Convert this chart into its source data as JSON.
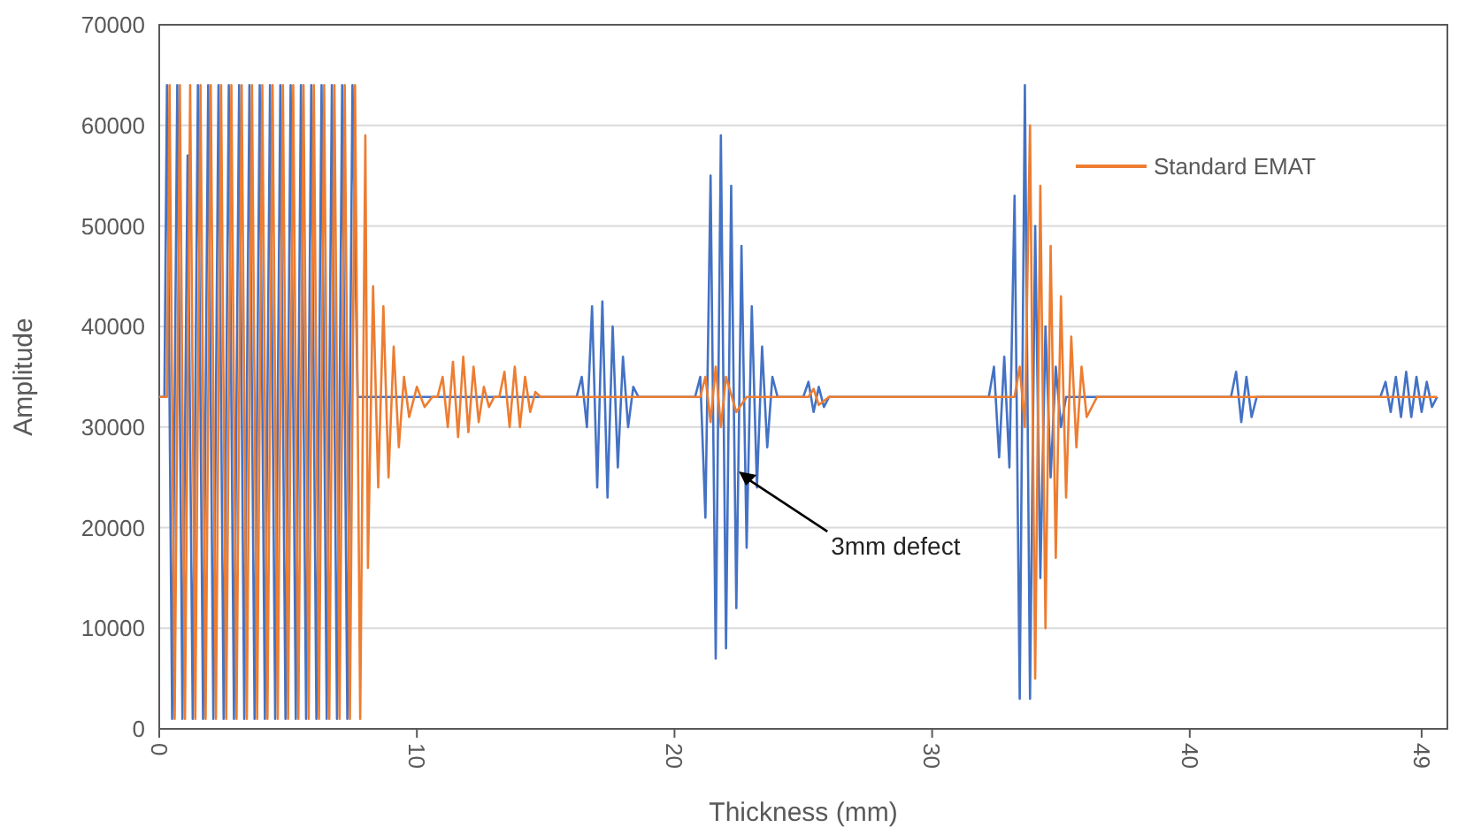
{
  "chart_data": {
    "type": "line",
    "xlabel": "Thickness (mm)",
    "ylabel": "Amplitude",
    "xlim": [
      0,
      50
    ],
    "xticks": [
      0,
      10,
      20,
      30,
      40,
      49
    ],
    "ylim": [
      0,
      70000
    ],
    "yticks": [
      0,
      10000,
      20000,
      30000,
      40000,
      50000,
      60000,
      70000
    ],
    "grid": "y",
    "legend": "top right",
    "line_style": "solid",
    "marker": "none",
    "annotations": [
      {
        "text": "3mm defect",
        "x": 22.5,
        "y": 25600
      }
    ],
    "series": [
      {
        "color": "#4472c4",
        "x": [
          0,
          0.2,
          0.3,
          0.5,
          0.7,
          0.9,
          1.1,
          1.3,
          1.5,
          1.7,
          1.9,
          2.1,
          2.3,
          2.5,
          2.7,
          2.9,
          3.1,
          3.3,
          3.5,
          3.7,
          3.9,
          4.1,
          4.3,
          4.5,
          4.7,
          4.9,
          5.1,
          5.3,
          5.5,
          5.7,
          5.9,
          6.1,
          6.3,
          6.5,
          6.7,
          6.9,
          7.1,
          7.3,
          7.5,
          7.7,
          8.0,
          16.2,
          16.4,
          16.6,
          16.8,
          17.0,
          17.2,
          17.4,
          17.6,
          17.8,
          18.0,
          18.2,
          18.4,
          18.6,
          20.8,
          21.0,
          21.2,
          21.4,
          21.6,
          21.8,
          22.0,
          22.2,
          22.4,
          22.6,
          22.8,
          23.0,
          23.2,
          23.4,
          23.6,
          23.8,
          24.0,
          25.0,
          25.2,
          25.4,
          25.6,
          25.8,
          26.0,
          32.2,
          32.4,
          32.6,
          32.8,
          33.0,
          33.2,
          33.4,
          33.6,
          33.8,
          34.0,
          34.2,
          34.4,
          34.6,
          34.8,
          35.0,
          35.2,
          41.6,
          41.8,
          42.0,
          42.2,
          42.4,
          42.6,
          47.4,
          47.6,
          47.8,
          48.0,
          48.2,
          48.4,
          48.6,
          48.8,
          49.0,
          49.2,
          49.4,
          49.6
        ],
        "values": [
          33000,
          33000,
          64000,
          1000,
          64000,
          1000,
          57000,
          1000,
          64000,
          1000,
          64000,
          1000,
          64000,
          1000,
          64000,
          1000,
          64000,
          1000,
          64000,
          1000,
          64000,
          1000,
          64000,
          1000,
          64000,
          1000,
          64000,
          1000,
          64000,
          1000,
          64000,
          1000,
          64000,
          1000,
          64000,
          1000,
          64000,
          1000,
          64000,
          33000,
          33000,
          33000,
          35000,
          30000,
          42000,
          24000,
          42500,
          23000,
          40000,
          26000,
          37000,
          30000,
          34000,
          33000,
          33000,
          35000,
          21000,
          55000,
          7000,
          59000,
          8000,
          54000,
          12000,
          48000,
          18000,
          42000,
          24000,
          38000,
          28000,
          35000,
          33000,
          33000,
          34500,
          31500,
          34000,
          32000,
          33000,
          33000,
          36000,
          27000,
          37000,
          26000,
          53000,
          3000,
          64000,
          3000,
          50000,
          15000,
          40000,
          25000,
          36000,
          30000,
          33000,
          33000,
          35500,
          30500,
          35000,
          31000,
          33000,
          33000,
          34500,
          31500,
          35000,
          31000,
          35500,
          31000,
          35000,
          31500,
          34500,
          32000,
          33000
        ]
      },
      {
        "name": "Standard EMAT",
        "color": "#ed7d31",
        "x": [
          0,
          0.3,
          0.4,
          0.6,
          0.8,
          1.0,
          1.2,
          1.4,
          1.6,
          1.8,
          2.0,
          2.2,
          2.4,
          2.6,
          2.8,
          3.0,
          3.2,
          3.4,
          3.6,
          3.8,
          4.0,
          4.2,
          4.4,
          4.6,
          4.8,
          5.0,
          5.2,
          5.4,
          5.6,
          5.8,
          6.0,
          6.2,
          6.4,
          6.6,
          6.8,
          7.0,
          7.2,
          7.4,
          7.6,
          7.8,
          8.0,
          8.1,
          8.3,
          8.5,
          8.7,
          8.9,
          9.1,
          9.3,
          9.5,
          9.7,
          10.0,
          10.3,
          10.6,
          10.8,
          11.0,
          11.2,
          11.4,
          11.6,
          11.8,
          12.0,
          12.2,
          12.4,
          12.6,
          12.8,
          13.0,
          13.2,
          13.4,
          13.6,
          13.8,
          14.0,
          14.2,
          14.4,
          14.6,
          14.8,
          21.0,
          21.2,
          21.4,
          21.6,
          21.8,
          22.0,
          22.4,
          22.8,
          25.2,
          25.4,
          25.6,
          26.0,
          33.2,
          33.4,
          33.6,
          33.8,
          34.0,
          34.2,
          34.4,
          34.6,
          34.8,
          35.0,
          35.2,
          35.4,
          35.6,
          35.8,
          36.0,
          36.4,
          49.6
        ],
        "values": [
          33000,
          33000,
          64000,
          1000,
          64000,
          1000,
          64000,
          1000,
          64000,
          1000,
          64000,
          1000,
          64000,
          1000,
          64000,
          1000,
          64000,
          1000,
          64000,
          1000,
          64000,
          1000,
          64000,
          1000,
          64000,
          1000,
          64000,
          1000,
          64000,
          1000,
          64000,
          1000,
          64000,
          1000,
          64000,
          1000,
          64000,
          1000,
          64000,
          1000,
          59000,
          16000,
          44000,
          24000,
          42000,
          25000,
          38000,
          28000,
          35000,
          31000,
          34000,
          32000,
          33000,
          33000,
          35000,
          30000,
          36500,
          29000,
          37000,
          29500,
          36000,
          30500,
          34000,
          32000,
          33000,
          33000,
          35500,
          30000,
          36000,
          30000,
          35000,
          31500,
          33500,
          33000,
          33000,
          35000,
          30500,
          36000,
          30000,
          35000,
          31500,
          33000,
          33000,
          33800,
          32200,
          33000,
          33000,
          36000,
          30000,
          60000,
          5000,
          54000,
          10000,
          48000,
          17000,
          43000,
          23000,
          39000,
          28000,
          36000,
          31000,
          33000,
          33000
        ]
      }
    ]
  }
}
